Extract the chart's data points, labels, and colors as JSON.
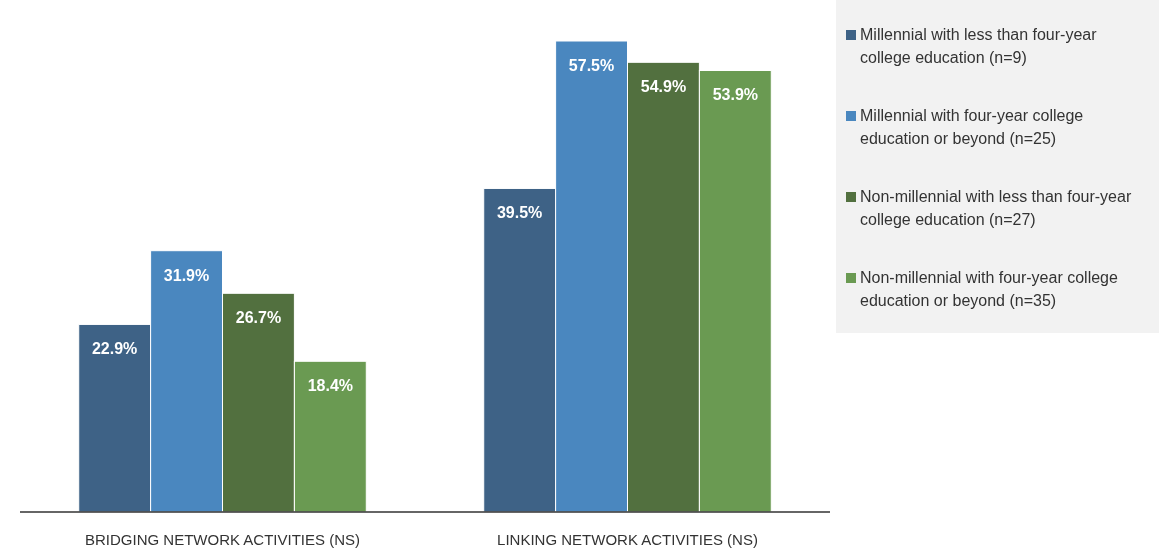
{
  "chart_data": {
    "type": "bar",
    "categories": [
      "BRIDGING NETWORK ACTIVITIES (NS)",
      "LINKING NETWORK ACTIVITIES (NS)"
    ],
    "series": [
      {
        "name": "Millennial with less than four-year college education (n=9)",
        "color": "#3e6286",
        "values": [
          22.9,
          39.5
        ],
        "value_labels": [
          "22.9%",
          "39.5%"
        ]
      },
      {
        "name": "Millennial with four-year college education or beyond (n=25)",
        "color": "#4a87bf",
        "values": [
          31.9,
          57.5
        ],
        "value_labels": [
          "31.9%",
          "57.5%"
        ]
      },
      {
        "name": "Non-millennial with less than four-year college education (n=27)",
        "color": "#52703f",
        "values": [
          26.7,
          54.9
        ],
        "value_labels": [
          "26.7%",
          "54.9%"
        ]
      },
      {
        "name": "Non-millennial with four-year college education or beyond (n=35)",
        "color": "#6a9a52",
        "values": [
          18.4,
          53.9
        ],
        "value_labels": [
          "18.4%",
          "53.9%"
        ]
      }
    ],
    "legend": "right"
  }
}
